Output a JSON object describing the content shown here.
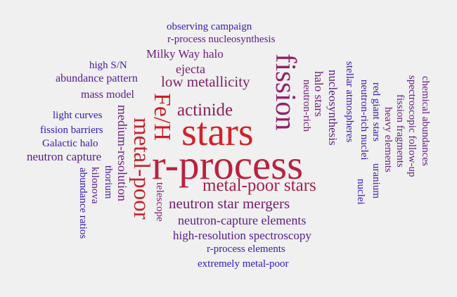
{
  "words": [
    {
      "id": "stars",
      "text": "stars",
      "color": "#d1222b"
    },
    {
      "id": "r-process",
      "text": "r-process",
      "color": "#b8233f"
    },
    {
      "id": "fission",
      "text": "fission",
      "color": "#8e246b"
    },
    {
      "id": "fe-h",
      "text": "Fe/H",
      "color": "#cc1f26"
    },
    {
      "id": "metal-poor",
      "text": "metal-poor",
      "color": "#c22430"
    },
    {
      "id": "metal-poor-stars",
      "text": "metal-poor stars",
      "color": "#a21f4c"
    },
    {
      "id": "actinide",
      "text": "actinide",
      "color": "#8c1f5c"
    },
    {
      "id": "neutron-star-mergers",
      "text": "neutron star mergers",
      "color": "#751c6f"
    },
    {
      "id": "low-metallicity",
      "text": "low metallicity",
      "color": "#7e1f66"
    },
    {
      "id": "neutron-capture-elements",
      "text": "neutron-capture elements",
      "color": "#5c1c80"
    },
    {
      "id": "milky-way-halo",
      "text": "Milky Way halo",
      "color": "#6a1e77"
    },
    {
      "id": "high-resolution-spectroscopy",
      "text": "high-resolution spectroscopy",
      "color": "#531b8c"
    },
    {
      "id": "ejecta",
      "text": "ejecta",
      "color": "#7a1c6c"
    },
    {
      "id": "medium-resolution",
      "text": "medium-resolution",
      "color": "#6a1c7a"
    },
    {
      "id": "neutron-capture",
      "text": "neutron capture",
      "color": "#551c85"
    },
    {
      "id": "r-process-elements",
      "text": "r-process elements",
      "color": "#3e1aa0"
    },
    {
      "id": "extremely-metal-poor",
      "text": "extremely metal-poor",
      "color": "#3317b8"
    },
    {
      "id": "mass-model",
      "text": "mass model",
      "color": "#581d84"
    },
    {
      "id": "abundance-pattern",
      "text": "abundance pattern",
      "color": "#531c8d"
    },
    {
      "id": "galactic-halo",
      "text": "Galactic halo",
      "color": "#3c18a0"
    },
    {
      "id": "r-process-nucleosynthesis",
      "text": "r-process nucleosynthesis",
      "color": "#5a1a88"
    },
    {
      "id": "observing-campaign",
      "text": "observing campaign",
      "color": "#3c19a6"
    },
    {
      "id": "high-sn",
      "text": "high S/N",
      "color": "#461a9c"
    },
    {
      "id": "light-curves",
      "text": "light curves",
      "color": "#3a17ad"
    },
    {
      "id": "fission-barriers",
      "text": "fission barriers",
      "color": "#3416b5"
    },
    {
      "id": "halo-stars",
      "text": "halo stars",
      "color": "#6b1d77"
    },
    {
      "id": "nucleosynthesis",
      "text": "nucleosynthesis",
      "color": "#5b1b84"
    },
    {
      "id": "neutron-rich",
      "text": "neutron-rich",
      "color": "#6e1d75"
    },
    {
      "id": "stellar-atmospheres",
      "text": "stellar atmospheres",
      "color": "#3a19a8"
    },
    {
      "id": "neutron-rich-nuclei",
      "text": "neutron-rich nuclei",
      "color": "#3b18a6"
    },
    {
      "id": "red-giant-stars",
      "text": "red giant stars",
      "color": "#3a18aa"
    },
    {
      "id": "uranium",
      "text": "uranium",
      "color": "#4019a3"
    },
    {
      "id": "nuclei",
      "text": "nuclei",
      "color": "#3516b5"
    },
    {
      "id": "heavy-elements",
      "text": "heavy elements",
      "color": "#6b1d78"
    },
    {
      "id": "fission-fragments",
      "text": "fission fragments",
      "color": "#5f1d80"
    },
    {
      "id": "spectroscopic-follow-up",
      "text": "spectroscopic follow-up",
      "color": "#621b80"
    },
    {
      "id": "chemical-abundances",
      "text": "chemical abundances",
      "color": "#5e1c82"
    },
    {
      "id": "thorium",
      "text": "thorium",
      "color": "#4318a1"
    },
    {
      "id": "kilonova",
      "text": "kilonova",
      "color": "#5a1c85"
    },
    {
      "id": "abundance-ratios",
      "text": "abundance ratios",
      "color": "#3818ad"
    },
    {
      "id": "telescope",
      "text": "telescope",
      "color": "#7e1f6c"
    }
  ]
}
